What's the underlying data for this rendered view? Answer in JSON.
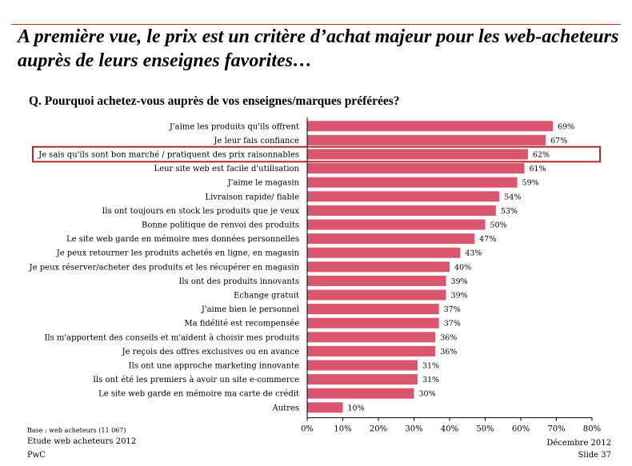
{
  "title": "A première vue, le prix est un critère d’achat majeur pour les web-acheteurs auprès de leurs enseignes favorites…",
  "question": "Q. Pourquoi achetez-vous auprès de vos enseignes/marques préférées?",
  "footer": {
    "base": "Base : web acheteurs (11 067)",
    "study": "Etude web acheteurs 2012",
    "company": "PwC",
    "date": "Décembre 2012",
    "slide": "Slide 37"
  },
  "chart_data": {
    "type": "bar",
    "orientation": "horizontal",
    "categories": [
      "J'aime les produits qu'ils offrent",
      "Je leur fais confiance",
      "Je sais qu'ils sont bon marché / pratiquent des prix raisonnables",
      "Leur site web est facile d'utilisation",
      "J'aime le magasin",
      "Livraison rapide/ fiable",
      "Ils ont toujours en stock les produits que je veux",
      "Bonne politique de renvoi des produits",
      "Le site web garde en mémoire mes données personnelles",
      "Je peux retourner les produits achetés en ligne, en magasin",
      "Je peux réserver/acheter des produits et les récupérer en magasin",
      "Ils ont des produits innovants",
      "Echange gratuit",
      "J'aime bien le personnel",
      "Ma fidélité est recompensée",
      "Ils m'apportent des conseils et m'aident à choisir mes produits",
      "Je reçois des offres exclusives ou en avance",
      "Ils ont une approche marketing innovante",
      "Ils ont été les premiers à avoir un site e-commerce",
      "Le site web garde en mémoire ma carte de crédit",
      "Autres"
    ],
    "values": [
      69,
      67,
      62,
      61,
      59,
      54,
      53,
      50,
      47,
      43,
      40,
      39,
      39,
      37,
      37,
      36,
      36,
      31,
      31,
      30,
      10
    ],
    "value_labels": [
      "69%",
      "67%",
      "62%",
      "61%",
      "59%",
      "54%",
      "53%",
      "50%",
      "47%",
      "43%",
      "40%",
      "39%",
      "39%",
      "37%",
      "37%",
      "36%",
      "36%",
      "31%",
      "31%",
      "30%",
      "10%"
    ],
    "xlim": [
      0,
      80
    ],
    "x_ticks": [
      "0%",
      "10%",
      "20%",
      "30%",
      "40%",
      "50%",
      "60%",
      "70%",
      "80%"
    ],
    "highlight_index": 2,
    "grid": false,
    "colors": {
      "bar": "#d9566e",
      "highlight_border": "#b3262c",
      "rule": "#c0392b"
    }
  }
}
